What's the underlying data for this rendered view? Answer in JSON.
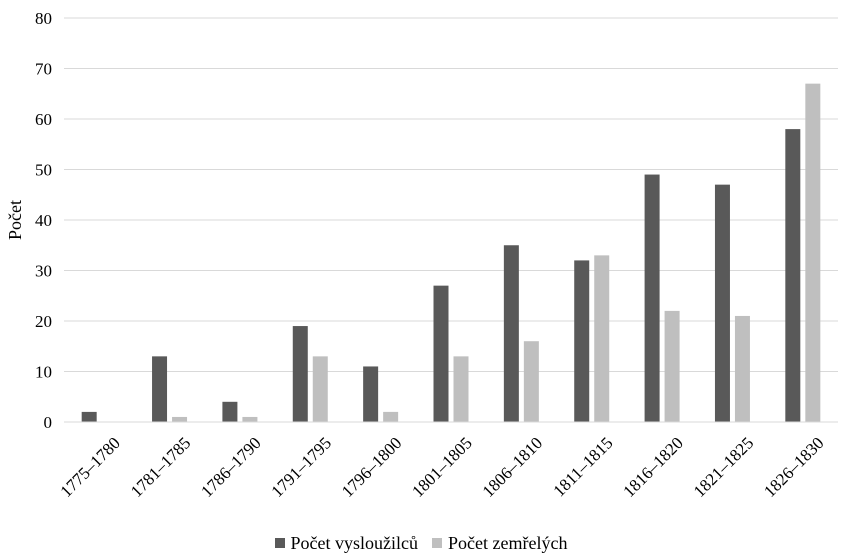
{
  "chart_data": {
    "type": "bar",
    "ylabel": "Počet",
    "xlabel": "",
    "ylim": [
      0,
      80
    ],
    "yticks": [
      0,
      10,
      20,
      30,
      40,
      50,
      60,
      70,
      80
    ],
    "grid": true,
    "legend_position": "bottom",
    "categories": [
      "1775–1780",
      "1781–1785",
      "1786–1790",
      "1791–1795",
      "1796–1800",
      "1801–1805",
      "1806–1810",
      "1811–1815",
      "1816–1820",
      "1821–1825",
      "1826–1830"
    ],
    "series": [
      {
        "name": "Počet vysloužilců",
        "color": "#595959",
        "values": [
          2,
          13,
          4,
          19,
          11,
          27,
          35,
          32,
          49,
          47,
          58
        ]
      },
      {
        "name": "Počet zemřelých",
        "color": "#bfbfbf",
        "values": [
          0,
          1,
          1,
          13,
          2,
          13,
          16,
          33,
          22,
          21,
          67
        ]
      }
    ]
  }
}
